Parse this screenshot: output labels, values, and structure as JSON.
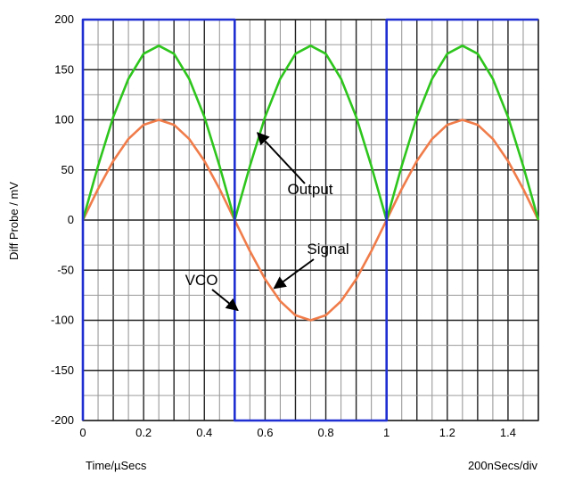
{
  "chart_data": {
    "type": "line",
    "ylabel": "Diff Probe / mV",
    "xlabel": "Time/µSecs",
    "time_scale_note": "200nSecs/div",
    "xlim": [
      0,
      1.5
    ],
    "ylim": [
      -200,
      200
    ],
    "x_ticks": [
      0,
      0.2,
      0.4,
      0.6,
      0.8,
      1,
      1.2,
      1.4
    ],
    "x_tick_labels": [
      "0",
      "0.2",
      "0.4",
      "0.6",
      "0.8",
      "1",
      "1.2",
      "1.4"
    ],
    "y_ticks": [
      200,
      150,
      100,
      50,
      0,
      -50,
      -100,
      -150,
      -200
    ],
    "y_tick_labels": [
      "200",
      "150",
      "100",
      "50",
      "0",
      "-50",
      "-100",
      "-150",
      "-200"
    ],
    "grid": true,
    "series": [
      {
        "color": "#f07c4a",
        "x": [
          0,
          0.05,
          0.1,
          0.15,
          0.2,
          0.25,
          0.3,
          0.35,
          0.4,
          0.45,
          0.5,
          0.55,
          0.6,
          0.65,
          0.7,
          0.75,
          0.8,
          0.85,
          0.9,
          0.95,
          1.0,
          1.05,
          1.1,
          1.15,
          1.2,
          1.25,
          1.3,
          1.35,
          1.4,
          1.45,
          1.5
        ],
        "y": [
          0,
          31,
          59,
          81,
          95,
          100,
          95,
          81,
          59,
          31,
          0,
          -31,
          -59,
          -81,
          -95,
          -100,
          -95,
          -81,
          -59,
          -31,
          0,
          31,
          59,
          81,
          95,
          100,
          95,
          81,
          59,
          31,
          0
        ]
      },
      {
        "color": "#2ec51d",
        "x": [
          0,
          0.05,
          0.1,
          0.15,
          0.2,
          0.25,
          0.3,
          0.35,
          0.4,
          0.45,
          0.5,
          0.55,
          0.6,
          0.65,
          0.7,
          0.75,
          0.8,
          0.85,
          0.9,
          0.95,
          1.0,
          1.05,
          1.1,
          1.15,
          1.2,
          1.25,
          1.3,
          1.35,
          1.4,
          1.45,
          1.5
        ],
        "y": [
          0,
          54,
          103,
          141,
          166,
          174,
          166,
          141,
          103,
          54,
          0,
          54,
          103,
          141,
          166,
          174,
          166,
          141,
          103,
          54,
          0,
          54,
          103,
          141,
          166,
          174,
          166,
          141,
          103,
          54,
          0
        ]
      },
      {
        "color": "#1f2fd1",
        "x": [
          0,
          0,
          0.5,
          0.5,
          1.0,
          1.0,
          1.5
        ],
        "y": [
          -200,
          200,
          200,
          -200,
          -200,
          200,
          200
        ]
      }
    ],
    "annotations": [
      {
        "text": "Output",
        "arrow_to": [
          0.575,
          87
        ]
      },
      {
        "text": "Signal",
        "arrow_to": [
          0.63,
          -68
        ]
      },
      {
        "text": "VCO",
        "arrow_to": [
          0.51,
          -90
        ]
      }
    ]
  }
}
